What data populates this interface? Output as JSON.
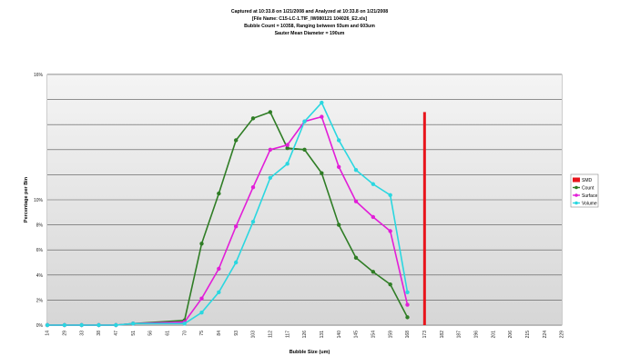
{
  "chart_data": {
    "type": "line",
    "title_lines": [
      "Captured at 10:33.8 on 1/21/2008 and Analyzed at 10:33.8 on 1/21/2008",
      "[File Name: C15-LC-1.TIF_IW080121 104026_E2.xls]",
      "Bubble Count = 10358, Ranging between 93um and 603um",
      "Sauter Mean Diameter = 190um"
    ],
    "xlabel": "Bubble Size (um)",
    "ylabel": "Percentage per Bin",
    "x_tick_labels": [
      "14",
      "29",
      "33",
      "38",
      "47",
      "51",
      "56",
      "61",
      "70",
      "75",
      "84",
      "93",
      "103",
      "112",
      "117",
      "126",
      "131",
      "140",
      "145",
      "154",
      "159",
      "168",
      "173",
      "182",
      "187",
      "196",
      "201",
      "206",
      "215",
      "224",
      "229"
    ],
    "y_tick_labels": [
      "0%",
      "2%",
      "4%",
      "6%",
      "8%",
      "10%",
      "",
      "",
      "",
      "",
      "16%"
    ],
    "ylim": [
      0,
      16
    ],
    "grid": true,
    "legend_position": "right",
    "sauter_mean_marker": {
      "name": "SMD",
      "x_index": 22,
      "color": "#e8141b"
    },
    "series": [
      {
        "name": "Count",
        "color": "#2f7d25",
        "values": [
          0,
          0,
          0,
          0,
          0,
          0.1,
          0.3,
          5.2,
          8.4,
          11.8,
          13.2,
          13.6,
          11.3,
          11.2,
          9.7,
          6.4,
          4.3,
          3.4,
          2.6,
          0.5
        ]
      },
      {
        "name": "Surface",
        "color": "#e21ed8",
        "values": [
          0,
          0,
          0,
          0,
          0,
          0.1,
          0.2,
          1.7,
          3.6,
          6.3,
          8.8,
          11.2,
          11.5,
          13.0,
          13.3,
          10.1,
          7.9,
          6.9,
          6.0,
          1.3
        ]
      },
      {
        "name": "Volume",
        "color": "#2ad7e0",
        "values": [
          0,
          0,
          0,
          0,
          0,
          0.1,
          0.1,
          0.8,
          2.1,
          4.0,
          6.6,
          9.4,
          10.3,
          13.0,
          14.2,
          11.8,
          9.9,
          9.0,
          8.3,
          2.1
        ]
      }
    ],
    "series_x_indices": [
      0,
      1,
      2,
      3,
      4,
      5,
      8,
      9,
      10,
      11,
      12,
      13,
      14,
      15,
      16,
      17,
      18,
      19,
      20,
      21
    ],
    "legend_entries": [
      {
        "name": "SMD",
        "color": "#e8141b",
        "style": "bar"
      },
      {
        "name": "Count",
        "color": "#2f7d25",
        "style": "line"
      },
      {
        "name": "Surface",
        "color": "#e21ed8",
        "style": "line"
      },
      {
        "name": "Volume",
        "color": "#2ad7e0",
        "style": "line"
      }
    ]
  }
}
